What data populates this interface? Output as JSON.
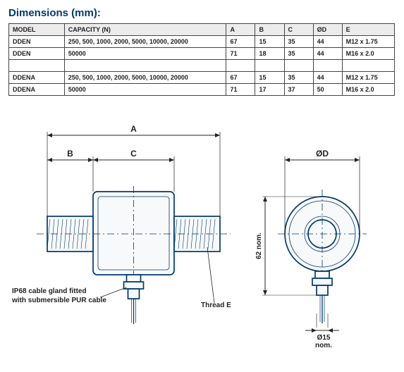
{
  "heading": "Dimensions (mm):",
  "table": {
    "columns": [
      "MODEL",
      "CAPACITY (N)",
      "A",
      "B",
      "C",
      "ØD",
      "E"
    ],
    "rows": [
      [
        "DDEN",
        "250, 500, 1000, 2000, 5000, 10000, 20000",
        "67",
        "15",
        "35",
        "44",
        "M12 x 1.75"
      ],
      [
        "DDEN",
        "50000",
        "71",
        "18",
        "35",
        "44",
        "M16 x 2.0"
      ],
      null,
      [
        "DDENA",
        "250, 500, 1000, 2000, 5000, 10000, 20000",
        "67",
        "15",
        "35",
        "44",
        "M12 x 1.75"
      ],
      [
        "DDENA",
        "50000",
        "71",
        "17",
        "37",
        "50",
        "M16 x 2.0"
      ]
    ]
  },
  "diagram": {
    "labels": {
      "dim_a": "A",
      "dim_b": "B",
      "dim_c": "C",
      "dim_od": "ØD",
      "dim_h": "62 nom.",
      "cable_d": "Ø15",
      "cable_d2": "nom.",
      "thread": "Thread E",
      "cable_note_l1": "IP68 cable gland fitted",
      "cable_note_l2": "with submersible PUR cable"
    },
    "stroke": "#003a6b",
    "stroke_width": 1.7,
    "body_fill": "#f8f9fa",
    "dim_stroke": "#222"
  }
}
